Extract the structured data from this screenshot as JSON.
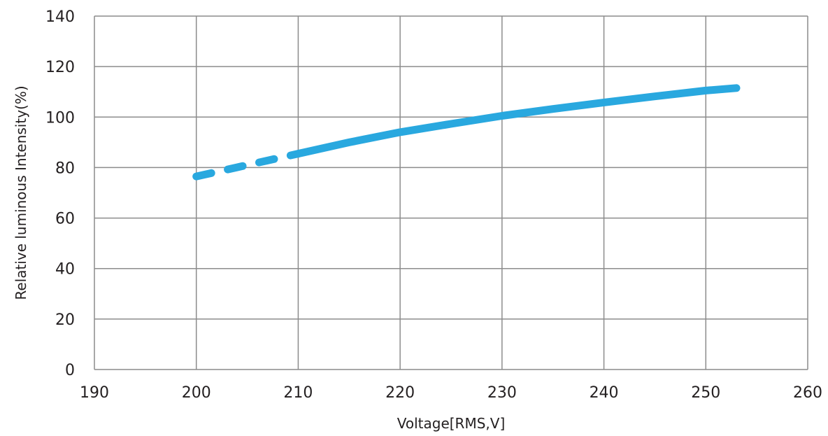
{
  "chart_data": {
    "type": "line",
    "title": "",
    "xlabel": "Voltage[RMS,V]",
    "ylabel": "Relative luminous Intensity(%)",
    "xlim": [
      190,
      260
    ],
    "ylim": [
      0,
      140
    ],
    "x_ticks": [
      190,
      200,
      210,
      220,
      230,
      240,
      250,
      260
    ],
    "y_ticks": [
      0,
      20,
      40,
      60,
      80,
      100,
      120,
      140
    ],
    "grid": true,
    "legend": "none",
    "series": [
      {
        "color": "#29a8df",
        "segments": [
          {
            "style": "dashed",
            "x": [
              200,
              202,
              204,
              206,
              208,
              210
            ],
            "y": [
              76.5,
              78.3,
              80.1,
              81.9,
              83.7,
              85.5
            ]
          },
          {
            "style": "solid",
            "x": [
              210,
              215,
              220,
              225,
              230,
              235,
              240,
              245,
              250,
              253
            ],
            "y": [
              85.5,
              90.0,
              94.0,
              97.3,
              100.5,
              103.2,
              105.8,
              108.2,
              110.5,
              111.5
            ]
          }
        ]
      }
    ]
  }
}
